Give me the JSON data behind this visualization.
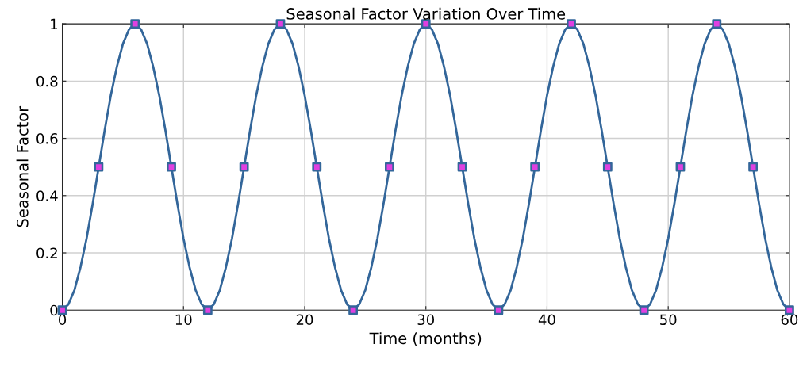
{
  "chart_data": {
    "type": "line",
    "title": "Seasonal Factor Variation Over Time",
    "xlabel": "Time (months)",
    "ylabel": "Seasonal Factor",
    "xlim": [
      0,
      60
    ],
    "ylim": [
      0,
      1
    ],
    "xticks": [
      0,
      10,
      20,
      30,
      40,
      50,
      60
    ],
    "yticks": [
      {
        "value": 0,
        "label": "0"
      },
      {
        "value": 0.2,
        "label": "0.2"
      },
      {
        "value": 0.4,
        "label": "0.4"
      },
      {
        "value": 0.6,
        "label": "0.6"
      },
      {
        "value": 0.8,
        "label": "0.8"
      },
      {
        "value": 1,
        "label": "1"
      }
    ],
    "grid": true,
    "series": [
      {
        "color": "#33669a",
        "marker": "none",
        "line_style": "solid",
        "x": [
          0,
          0.5,
          1,
          1.5,
          2,
          2.5,
          3,
          3.5,
          4,
          4.5,
          5,
          5.5,
          6,
          6.5,
          7,
          7.5,
          8,
          8.5,
          9,
          9.5,
          10,
          10.5,
          11,
          11.5,
          12,
          12.5,
          13,
          13.5,
          14,
          14.5,
          15,
          15.5,
          16,
          16.5,
          17,
          17.5,
          18,
          18.5,
          19,
          19.5,
          20,
          20.5,
          21,
          21.5,
          22,
          22.5,
          23,
          23.5,
          24,
          24.5,
          25,
          25.5,
          26,
          26.5,
          27,
          27.5,
          28,
          28.5,
          29,
          29.5,
          30,
          30.5,
          31,
          31.5,
          32,
          32.5,
          33,
          33.5,
          34,
          34.5,
          35,
          35.5,
          36,
          36.5,
          37,
          37.5,
          38,
          38.5,
          39,
          39.5,
          40,
          40.5,
          41,
          41.5,
          42,
          42.5,
          43,
          43.5,
          44,
          44.5,
          45,
          45.5,
          46,
          46.5,
          47,
          47.5,
          48,
          48.5,
          49,
          49.5,
          50,
          50.5,
          51,
          51.5,
          52,
          52.5,
          53,
          53.5,
          54,
          54.5,
          55,
          55.5,
          56,
          56.5,
          57,
          57.5,
          58,
          58.5,
          59,
          59.5,
          60
        ],
        "values": [
          0,
          0.02,
          0.07,
          0.15,
          0.25,
          0.37,
          0.5,
          0.63,
          0.75,
          0.85,
          0.93,
          0.98,
          1,
          0.98,
          0.93,
          0.85,
          0.75,
          0.63,
          0.5,
          0.37,
          0.25,
          0.15,
          0.07,
          0.02,
          0,
          0.02,
          0.07,
          0.15,
          0.25,
          0.37,
          0.5,
          0.63,
          0.75,
          0.85,
          0.93,
          0.98,
          1,
          0.98,
          0.93,
          0.85,
          0.75,
          0.63,
          0.5,
          0.37,
          0.25,
          0.15,
          0.07,
          0.02,
          0,
          0.02,
          0.07,
          0.15,
          0.25,
          0.37,
          0.5,
          0.63,
          0.75,
          0.85,
          0.93,
          0.98,
          1,
          0.98,
          0.93,
          0.85,
          0.75,
          0.63,
          0.5,
          0.37,
          0.25,
          0.15,
          0.07,
          0.02,
          0,
          0.02,
          0.07,
          0.15,
          0.25,
          0.37,
          0.5,
          0.63,
          0.75,
          0.85,
          0.93,
          0.98,
          1,
          0.98,
          0.93,
          0.85,
          0.75,
          0.63,
          0.5,
          0.37,
          0.25,
          0.15,
          0.07,
          0.02,
          0,
          0.02,
          0.07,
          0.15,
          0.25,
          0.37,
          0.5,
          0.63,
          0.75,
          0.85,
          0.93,
          0.98,
          1,
          0.98,
          0.93,
          0.85,
          0.75,
          0.63,
          0.5,
          0.37,
          0.25,
          0.15,
          0.07,
          0.02,
          0
        ]
      },
      {
        "type": "scatter",
        "color": "#e040e0",
        "marker": "square",
        "x": [
          0,
          3,
          6,
          9,
          12,
          15,
          18,
          21,
          24,
          27,
          30,
          33,
          36,
          39,
          42,
          45,
          48,
          51,
          54,
          57,
          60
        ],
        "values": [
          0,
          0.5,
          1,
          0.5,
          0,
          0.5,
          1,
          0.5,
          0,
          0.5,
          1,
          0.5,
          0,
          0.5,
          1,
          0.5,
          0,
          0.5,
          1,
          0.5,
          0
        ]
      }
    ]
  }
}
